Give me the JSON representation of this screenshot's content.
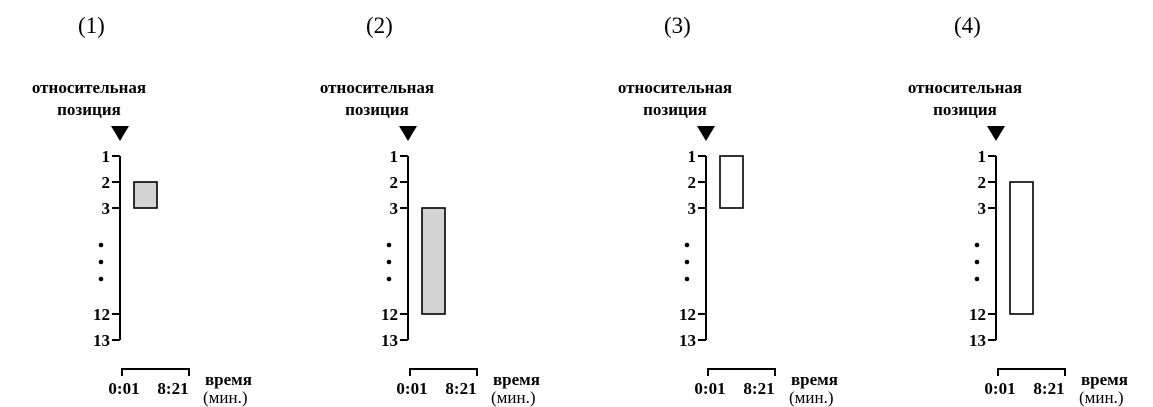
{
  "y_title_line1": "относительная",
  "y_title_line2": "позиция",
  "y_ticks": [
    "1",
    "2",
    "3",
    "12",
    "13"
  ],
  "y_tick_positions": [
    1,
    2,
    3,
    12,
    13
  ],
  "ellipsis": "⋮",
  "x_ticks": [
    "0:01",
    "8:21"
  ],
  "x_title": "время",
  "x_unit": "(мин.)",
  "colors": {
    "filled": "#d3d3d3",
    "empty": "#ffffff",
    "stroke": "#000000"
  },
  "panels": [
    {
      "label": "(1)",
      "bar": {
        "from": 2,
        "to": 3
      },
      "fill": "filled"
    },
    {
      "label": "(2)",
      "bar": {
        "from": 3,
        "to": 12
      },
      "fill": "filled"
    },
    {
      "label": "(3)",
      "bar": {
        "from": 1,
        "to": 3
      },
      "fill": "empty"
    },
    {
      "label": "(4)",
      "bar": {
        "from": 2,
        "to": 12
      },
      "fill": "empty"
    }
  ]
}
